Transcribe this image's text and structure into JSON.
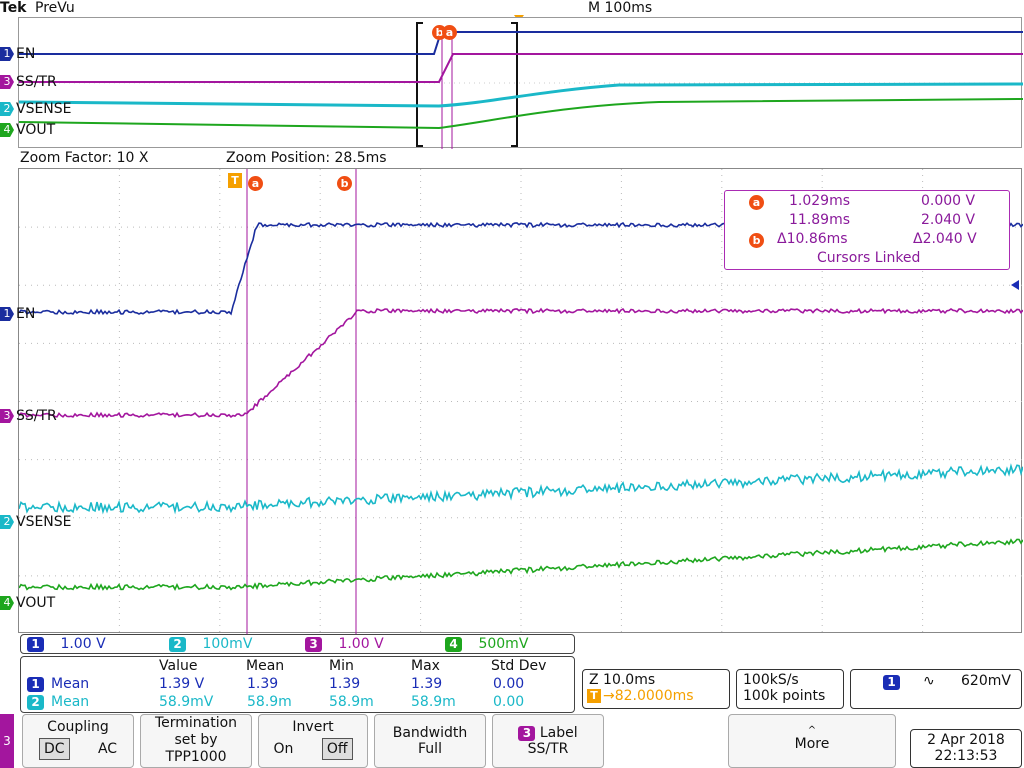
{
  "header": {
    "brand": "Tek",
    "mode": "PreVu",
    "timebase": "M 100ms"
  },
  "zoom": {
    "factor": "Zoom Factor: 10 X",
    "position": "Zoom Position: 28.5ms"
  },
  "channels": [
    {
      "num": "1",
      "name": "EN",
      "color": "#1a2d9e"
    },
    {
      "num": "3",
      "name": "SS/TR",
      "color": "#a3169e"
    },
    {
      "num": "2",
      "name": "VSENSE",
      "color": "#1ab8c8"
    },
    {
      "num": "4",
      "name": "VOUT",
      "color": "#1ea61e"
    }
  ],
  "markers": {
    "trigger": "T",
    "cursor_a": "a",
    "cursor_b": "b"
  },
  "cursor_readout": {
    "a_time": "1.029ms",
    "a_volt": "0.000 V",
    "b_time": "11.89ms",
    "b_volt": "2.040 V",
    "delta_time": "Δ10.86ms",
    "delta_volt": "Δ2.040 V",
    "linked": "Cursors Linked"
  },
  "scales": [
    {
      "num": "1",
      "value": "1.00 V",
      "color": "#1a2db6"
    },
    {
      "num": "2",
      "value": "100mV",
      "color": "#1ab8c8"
    },
    {
      "num": "3",
      "value": "1.00 V",
      "color": "#a3169e"
    },
    {
      "num": "4",
      "value": "500mV",
      "color": "#1ea61e"
    }
  ],
  "measurements": {
    "headers": [
      "Value",
      "Mean",
      "Min",
      "Max",
      "Std Dev"
    ],
    "rows": [
      {
        "num": "1",
        "label": "Mean",
        "color": "#1a2db6",
        "cells": [
          "1.39 V",
          "1.39",
          "1.39",
          "1.39",
          "0.00"
        ]
      },
      {
        "num": "2",
        "label": "Mean",
        "color": "#1ab8c8",
        "cells": [
          "58.9mV",
          "58.9m",
          "58.9m",
          "58.9m",
          "0.00"
        ]
      }
    ]
  },
  "horizontal": {
    "zoom": "Z 10.0ms",
    "trigger_pos": "→82.0000ms"
  },
  "acquisition": {
    "rate": "100kS/s",
    "points": "100k points"
  },
  "trigger": {
    "num": "1",
    "slope": "∿",
    "level": "620mV"
  },
  "menu": {
    "side_num": "3",
    "coupling": {
      "title": "Coupling",
      "opt1": "DC",
      "opt2": "AC"
    },
    "termination": {
      "line1": "Termination",
      "line2": "set by",
      "line3": "TPP1000"
    },
    "invert": {
      "title": "Invert",
      "opt1": "On",
      "opt2": "Off"
    },
    "bandwidth": {
      "title": "Bandwidth",
      "value": "Full"
    },
    "label": {
      "num": "3",
      "title": "Label",
      "value": "SS/TR"
    },
    "more": "More"
  },
  "datetime": {
    "date": "2 Apr 2018",
    "time": "22:13:53"
  }
}
